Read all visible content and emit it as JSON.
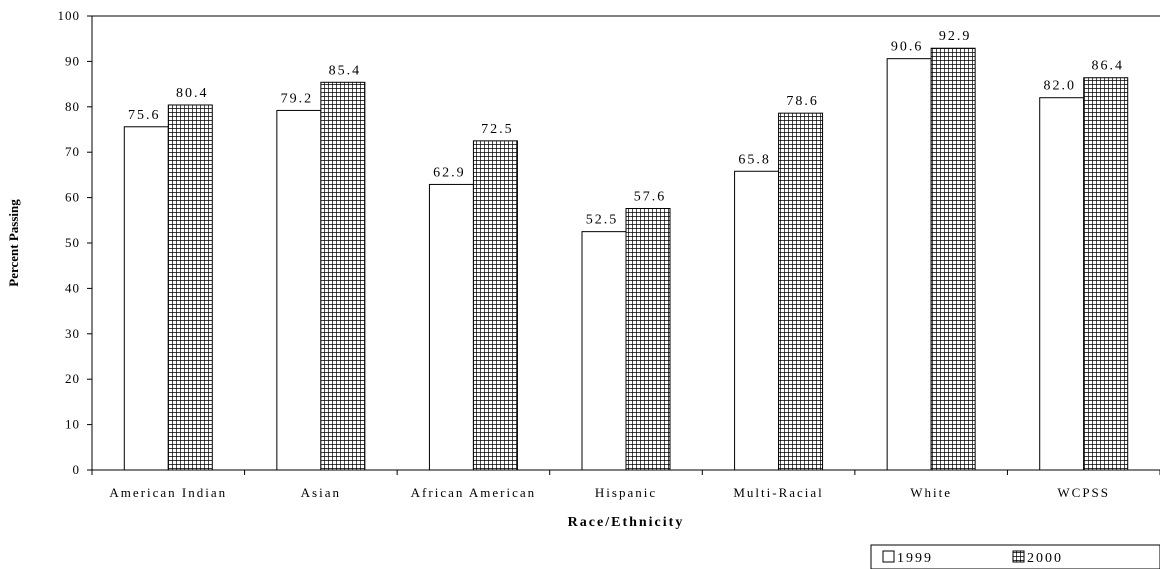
{
  "chart_data": {
    "type": "bar",
    "title": "",
    "xlabel": "Race/Ethnicity",
    "ylabel": "Percent Passing",
    "ylim": [
      0,
      100
    ],
    "ytick_step": 10,
    "grid": false,
    "legend_position": "bottom-right",
    "categories": [
      "American Indian",
      "Asian",
      "African American",
      "Hispanic",
      "Multi-Racial",
      "White",
      "WCPSS"
    ],
    "series": [
      {
        "name": "1999",
        "values": [
          75.6,
          79.2,
          62.9,
          52.5,
          65.8,
          90.6,
          82.0
        ],
        "fill": "white"
      },
      {
        "name": "2000",
        "values": [
          80.4,
          85.4,
          72.5,
          57.6,
          78.6,
          92.9,
          86.4
        ],
        "fill": "grid-pattern"
      }
    ],
    "data_labels": [
      [
        "75.6",
        "79.2",
        "62.9",
        "52.5",
        "65.8",
        "90.6",
        "82.0"
      ],
      [
        "80.4",
        "85.4",
        "72.5",
        "57.6",
        "78.6",
        "92.9",
        "86.4"
      ]
    ],
    "colors": {
      "bar_outline": "#000000",
      "pattern_line": "#000000",
      "background": "#ffffff"
    }
  }
}
